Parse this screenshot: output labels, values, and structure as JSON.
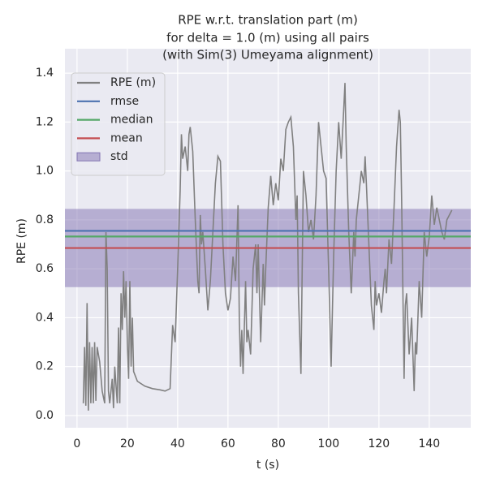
{
  "chart_data": {
    "type": "line",
    "title": [
      "RPE w.r.t. translation part (m)",
      "for delta = 1.0 (m) using all pairs",
      "(with Sim(3) Umeyama alignment)"
    ],
    "xlabel": "t (s)",
    "ylabel": "RPE (m)",
    "xlim": [
      -4.8,
      156.5
    ],
    "ylim": [
      -0.05,
      1.5
    ],
    "xticks": [
      0,
      20,
      40,
      60,
      80,
      100,
      120,
      140
    ],
    "yticks": [
      {
        "value": 0,
        "label": "0.0"
      },
      {
        "value": 0.2,
        "label": "0.2"
      },
      {
        "value": 0.4,
        "label": "0.4"
      },
      {
        "value": 0.6,
        "label": "0.6"
      },
      {
        "value": 0.8,
        "label": "0.8"
      },
      {
        "value": 1.0,
        "label": "1.0"
      },
      {
        "value": 1.2,
        "label": "1.2"
      },
      {
        "value": 1.4,
        "label": "1.4"
      }
    ],
    "grid": true,
    "legend": "upper left",
    "x": [
      2.5,
      3,
      3.5,
      4,
      4.5,
      5,
      5.5,
      6,
      6.5,
      7,
      7.5,
      8,
      9,
      10,
      11,
      11.5,
      12,
      12.5,
      13,
      14,
      14.5,
      15,
      16,
      16.5,
      17,
      17.5,
      18,
      18.5,
      19,
      19.5,
      20,
      20.5,
      21,
      21.5,
      22,
      22.5,
      24,
      27,
      30,
      33,
      35,
      37,
      38,
      39,
      40,
      41,
      41.5,
      42,
      43,
      44,
      44.5,
      45,
      46,
      47,
      48,
      48.5,
      49,
      49.5,
      50,
      51,
      52,
      53,
      54,
      55,
      56,
      57,
      58,
      59,
      60,
      61,
      62,
      63,
      64,
      64.5,
      65,
      65.5,
      66,
      67,
      67.5,
      68,
      69,
      70,
      71,
      71.5,
      72,
      73,
      74,
      74.5,
      75,
      76,
      77,
      78,
      79,
      80,
      81,
      82,
      83,
      84,
      85,
      86,
      87,
      87.5,
      88,
      89,
      89.5,
      90,
      91,
      92,
      93,
      94,
      95,
      96,
      97,
      98,
      99,
      100,
      101,
      102,
      103,
      104,
      105,
      106,
      106.5,
      107,
      108,
      109,
      110,
      110.5,
      111,
      112,
      113,
      114,
      114.5,
      115,
      116,
      117,
      118,
      118.5,
      119,
      120,
      121,
      122,
      122.5,
      123,
      124,
      125,
      126,
      127,
      128,
      128.5,
      129,
      130,
      130.5,
      131,
      132,
      133,
      134,
      134.5,
      135,
      136,
      137,
      138,
      139,
      140,
      141,
      142,
      143,
      144,
      145,
      146,
      147,
      148,
      149
    ],
    "series": [
      {
        "name": "RPE (m)",
        "color": "#808080",
        "values": [
          0.05,
          0.28,
          0.04,
          0.46,
          0.02,
          0.3,
          0.05,
          0.28,
          0.05,
          0.3,
          0.06,
          0.28,
          0.22,
          0.1,
          0.05,
          0.75,
          0.6,
          0.1,
          0.05,
          0.15,
          0.03,
          0.2,
          0.05,
          0.36,
          0.05,
          0.5,
          0.35,
          0.59,
          0.4,
          0.55,
          0.3,
          0.15,
          0.55,
          0.2,
          0.4,
          0.18,
          0.14,
          0.12,
          0.11,
          0.105,
          0.1,
          0.11,
          0.37,
          0.3,
          0.6,
          0.92,
          1.15,
          1.05,
          1.1,
          1.0,
          1.15,
          1.18,
          1.08,
          0.8,
          0.55,
          0.5,
          0.82,
          0.7,
          0.75,
          0.6,
          0.43,
          0.55,
          0.75,
          0.95,
          1.06,
          1.04,
          0.7,
          0.5,
          0.43,
          0.48,
          0.65,
          0.55,
          0.86,
          0.4,
          0.2,
          0.35,
          0.17,
          0.55,
          0.3,
          0.35,
          0.25,
          0.6,
          0.7,
          0.5,
          0.7,
          0.3,
          0.62,
          0.45,
          0.6,
          0.85,
          0.98,
          0.86,
          0.95,
          0.88,
          1.05,
          1.0,
          1.17,
          1.2,
          1.22,
          1.1,
          0.8,
          0.9,
          0.5,
          0.17,
          0.6,
          1.0,
          0.9,
          0.75,
          0.8,
          0.72,
          0.9,
          1.2,
          1.1,
          1.0,
          0.97,
          0.6,
          0.2,
          0.65,
          1.0,
          1.2,
          1.05,
          1.25,
          1.36,
          1.1,
          0.75,
          0.5,
          0.75,
          0.65,
          0.8,
          0.9,
          1.0,
          0.95,
          1.06,
          0.95,
          0.7,
          0.45,
          0.35,
          0.55,
          0.45,
          0.5,
          0.42,
          0.55,
          0.6,
          0.5,
          0.72,
          0.62,
          0.85,
          1.1,
          1.25,
          1.2,
          0.9,
          0.15,
          0.45,
          0.5,
          0.25,
          0.4,
          0.1,
          0.3,
          0.25,
          0.55,
          0.4,
          0.75,
          0.65,
          0.73,
          0.9,
          0.78,
          0.85,
          0.8,
          0.75,
          0.72,
          0.8,
          0.82,
          0.84
        ]
      }
    ],
    "statistics": [
      {
        "name": "rmse",
        "color": "#4c72b0",
        "value": 0.755
      },
      {
        "name": "median",
        "color": "#55a868",
        "value": 0.732
      },
      {
        "name": "mean",
        "color": "#c44e52",
        "value": 0.685
      }
    ],
    "std": {
      "name": "std",
      "color": "#8172b2",
      "value": 0.16
    }
  }
}
